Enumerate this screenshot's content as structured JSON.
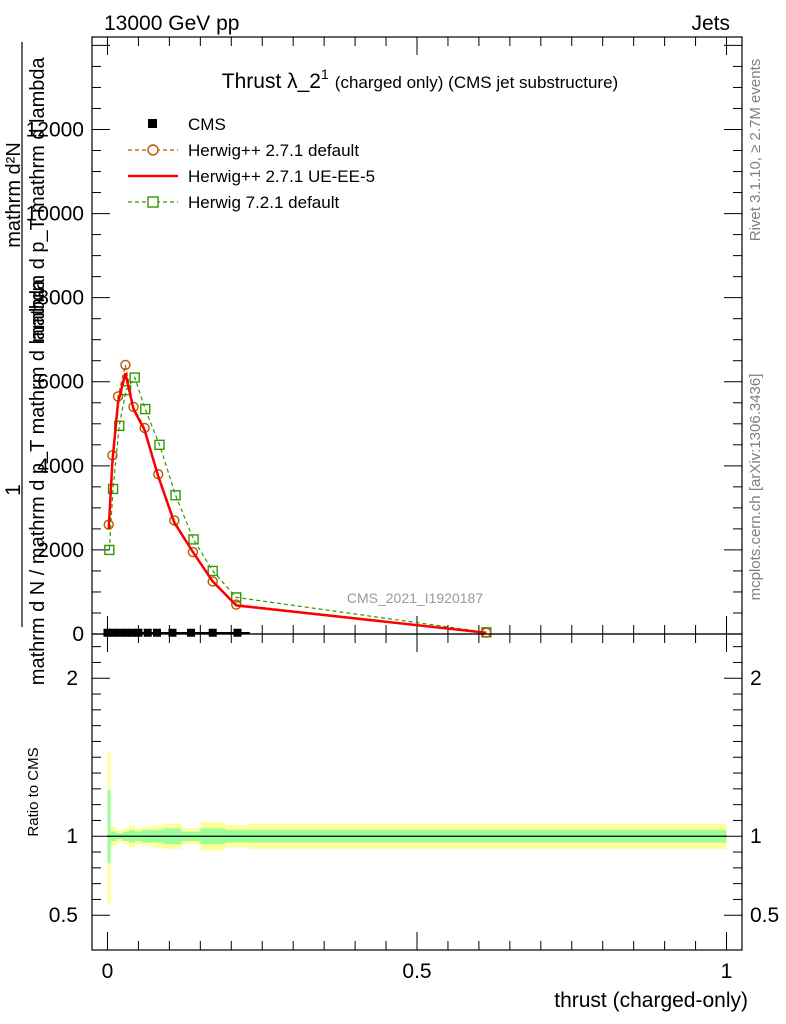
{
  "header": {
    "left": "13000 GeV pp",
    "right": "Jets"
  },
  "side_labels": {
    "rivet": "Rivet 3.1.10, ≥ 2.7M events",
    "mcplots": "mcplots.cern.ch [arXiv:1306.3436]"
  },
  "chart_data": [
    {
      "type": "line",
      "title": "Thrust λ_2",
      "title_superscript": "1",
      "title_suffix": "(charged only) (CMS jet substructure)",
      "ylabel_parts": [
        "1",
        "mathrm d N / mathrm d p_T mathrm d lambda",
        "mathrm d²N",
        "mathrm d p_T mathrm d lambda"
      ],
      "watermark": "CMS_2021_I1920187",
      "xlim": [
        -0.025,
        1.025
      ],
      "ylim": [
        0,
        14200
      ],
      "y_ticks": [
        0,
        2000,
        4000,
        6000,
        8000,
        10000,
        12000
      ],
      "y_tick_labels": [
        "0",
        "2000",
        "4000",
        "6000",
        "8000",
        "10000",
        "12000"
      ],
      "legend_position": "top-left",
      "colors": {
        "cms": "#000000",
        "herwig_default": "#b35900",
        "herwig_ueee5": "#ff0000",
        "herwig721": "#339900"
      },
      "series": [
        {
          "name": "CMS",
          "style": "marker-square",
          "x": [
            0.0,
            0.01,
            0.02,
            0.03,
            0.04,
            0.05,
            0.065,
            0.08,
            0.105,
            0.135,
            0.17,
            0.21
          ],
          "y": [
            30,
            30,
            30,
            30,
            30,
            30,
            30,
            30,
            30,
            30,
            30,
            30
          ],
          "xerr": [
            0.005,
            0.005,
            0.005,
            0.005,
            0.005,
            0.005,
            0.01,
            0.01,
            0.015,
            0.015,
            0.02,
            0.02
          ]
        },
        {
          "name": "Herwig++ 2.7.1 default",
          "style": "dashed-circle",
          "x": [
            0.002,
            0.008,
            0.017,
            0.029,
            0.042,
            0.06,
            0.082,
            0.108,
            0.138,
            0.17,
            0.208,
            0.612
          ],
          "y": [
            2600,
            4250,
            5650,
            6400,
            5400,
            4900,
            3800,
            2700,
            1950,
            1250,
            700,
            30
          ]
        },
        {
          "name": "Herwig++ 2.7.1 UE-EE-5",
          "style": "solid",
          "x": [
            0.002,
            0.008,
            0.017,
            0.029,
            0.042,
            0.06,
            0.082,
            0.108,
            0.138,
            0.17,
            0.208,
            0.612
          ],
          "y": [
            2500,
            4100,
            5500,
            6200,
            5350,
            4850,
            3750,
            2650,
            1950,
            1250,
            680,
            30
          ]
        },
        {
          "name": "Herwig 7.2.1 default",
          "style": "dashed-square",
          "x": [
            0.003,
            0.009,
            0.019,
            0.03,
            0.044,
            0.061,
            0.084,
            0.11,
            0.139,
            0.17,
            0.208,
            0.612
          ],
          "y": [
            2000,
            3450,
            4950,
            5800,
            6100,
            5350,
            4500,
            3300,
            2250,
            1500,
            870,
            40
          ]
        }
      ]
    },
    {
      "type": "area",
      "ylabel": "Ratio to CMS",
      "xlabel": "thrust (charged-only)",
      "xlim": [
        -0.025,
        1.025
      ],
      "ylim": [
        0.28,
        2.28
      ],
      "x_ticks": [
        0,
        0.5,
        1
      ],
      "x_tick_labels": [
        "0",
        "0.5",
        "1"
      ],
      "y_ticks": [
        0.5,
        1,
        2
      ],
      "y_tick_labels": [
        "0.5",
        "1",
        "2"
      ],
      "colors": {
        "band_outer": "#ffff99",
        "band_inner": "#99ff99",
        "reference": "#000000"
      },
      "bands": {
        "x_edges": [
          0.0,
          0.005,
          0.015,
          0.025,
          0.035,
          0.045,
          0.055,
          0.075,
          0.09,
          0.12,
          0.15,
          0.19,
          0.23,
          1.0
        ],
        "outer_low": [
          0.57,
          0.94,
          0.96,
          0.95,
          0.93,
          0.95,
          0.94,
          0.93,
          0.92,
          0.95,
          0.91,
          0.93,
          0.92
        ],
        "outer_high": [
          1.53,
          1.06,
          1.04,
          1.05,
          1.07,
          1.05,
          1.06,
          1.07,
          1.08,
          1.05,
          1.09,
          1.07,
          1.08
        ],
        "inner_low": [
          0.83,
          0.97,
          0.98,
          0.97,
          0.96,
          0.97,
          0.96,
          0.96,
          0.95,
          0.97,
          0.95,
          0.96,
          0.96
        ],
        "inner_high": [
          1.29,
          1.03,
          1.02,
          1.03,
          1.04,
          1.03,
          1.04,
          1.04,
          1.05,
          1.03,
          1.05,
          1.04,
          1.04
        ]
      },
      "reference": 1
    }
  ]
}
